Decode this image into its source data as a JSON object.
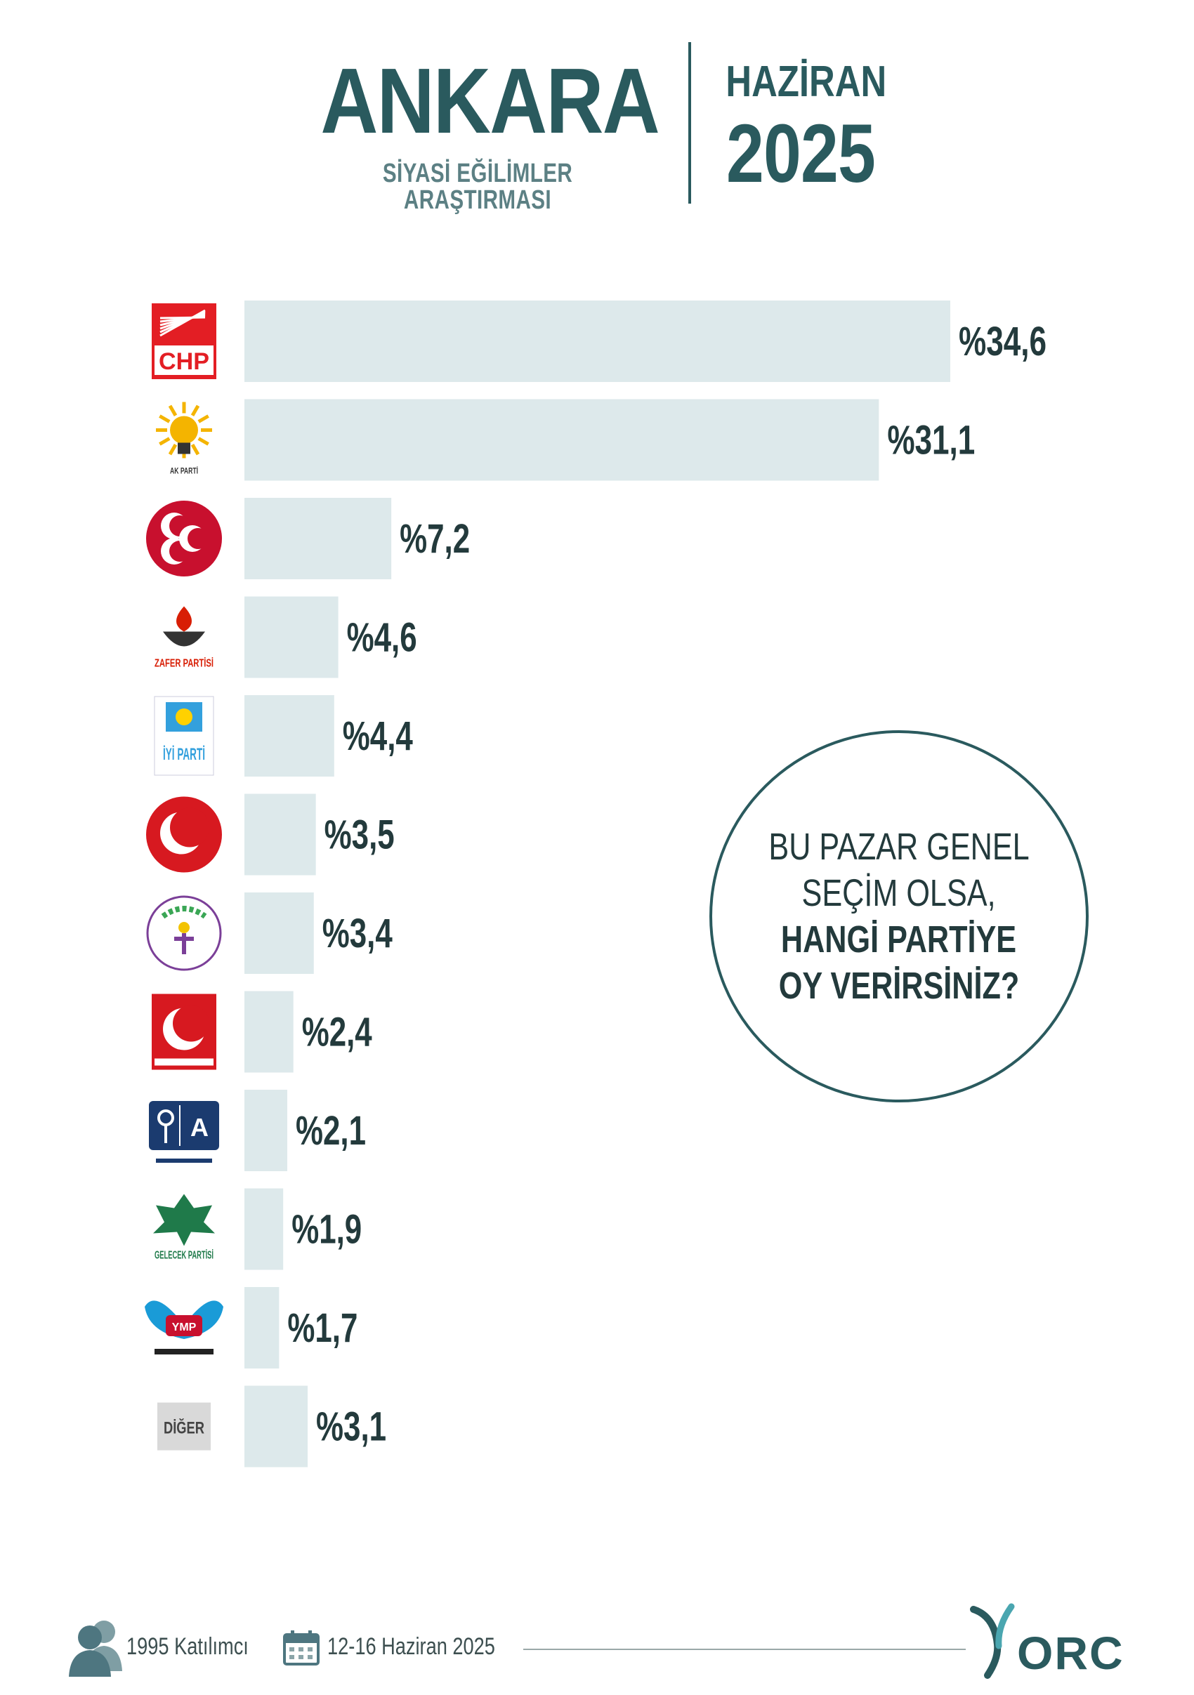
{
  "header": {
    "title": "ANKARA",
    "subtitle": "SİYASİ EĞİLİMLER ARAŞTIRMASI",
    "month": "HAZİRAN",
    "year": "2025"
  },
  "question": {
    "line1": "BU PAZAR GENEL",
    "line2": "SEÇİM OLSA,",
    "line3": "HANGİ PARTİYE",
    "line4": "OY VERİRSİNİZ?"
  },
  "footer": {
    "participants": "1995 Katılımcı",
    "dates": "12-16 Haziran 2025",
    "logo_text": "ORC"
  },
  "colors": {
    "bar": "#dde9eb",
    "accent": "#2a5a5e",
    "text": "#233a3c"
  },
  "chart_data": {
    "type": "bar",
    "orientation": "horizontal",
    "categories": [
      "CHP",
      "AK PARTİ",
      "MHP",
      "ZAFER PARTİSİ",
      "İYİ PARTİ",
      "YENİDEN REFAH",
      "DEM PARTİ",
      "BBP",
      "ANAHTAR PARTİ",
      "GELECEK PARTİSİ",
      "YMP",
      "DİĞER"
    ],
    "values": [
      34.6,
      31.1,
      7.2,
      4.6,
      4.4,
      3.5,
      3.4,
      2.4,
      2.1,
      1.9,
      1.7,
      3.1
    ],
    "value_labels": [
      "%34,6",
      "%31,1",
      "%7,2",
      "%4,6",
      "%4,4",
      "%3,5",
      "%3,4",
      "%2,4",
      "%2,1",
      "%1,9",
      "%1,7",
      "%3,1"
    ],
    "logo_text": [
      "CHP",
      "AK PARTİ",
      "",
      "ZAFER PARTİSİ",
      "İYİ PARTİ",
      "",
      "",
      "",
      "A",
      "GELECEK PARTİSİ",
      "YMP",
      "DİĞER"
    ],
    "title": "",
    "xlabel": "",
    "ylabel": "",
    "grid": false
  }
}
